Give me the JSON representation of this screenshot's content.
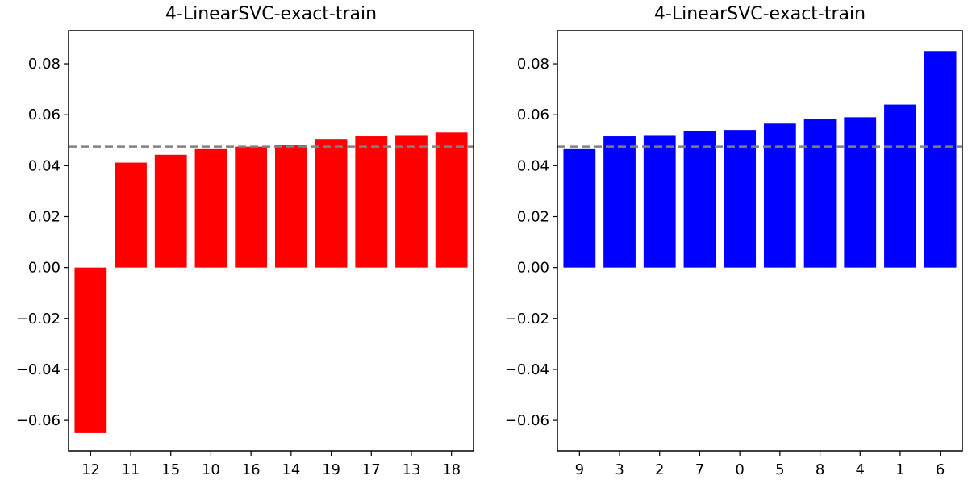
{
  "chart_data": [
    {
      "type": "bar",
      "title": "4-LinearSVC-exact-train",
      "xlabel": "",
      "ylabel": "",
      "categories": [
        "12",
        "11",
        "15",
        "10",
        "16",
        "14",
        "19",
        "17",
        "13",
        "18"
      ],
      "values": [
        -0.065,
        0.0412,
        0.0443,
        0.0465,
        0.0475,
        0.048,
        0.0505,
        0.0515,
        0.052,
        0.053
      ],
      "ylim": [
        -0.072,
        0.093
      ],
      "yticks": [
        -0.06,
        -0.04,
        -0.02,
        0.0,
        0.02,
        0.04,
        0.06,
        0.08
      ],
      "ytick_labels": [
        "−0.06",
        "−0.04",
        "−0.02",
        "0.00",
        "0.02",
        "0.04",
        "0.06",
        "0.08"
      ],
      "reference_line": 0.0475,
      "bar_color": "#ff0000",
      "reference_color": "#808080",
      "grid": false,
      "legend": "none"
    },
    {
      "type": "bar",
      "title": "4-LinearSVC-exact-train",
      "xlabel": "",
      "ylabel": "",
      "categories": [
        "9",
        "3",
        "2",
        "7",
        "0",
        "5",
        "8",
        "4",
        "1",
        "6"
      ],
      "values": [
        0.0465,
        0.0515,
        0.052,
        0.0535,
        0.054,
        0.0565,
        0.0583,
        0.059,
        0.064,
        0.085
      ],
      "ylim": [
        -0.072,
        0.093
      ],
      "yticks": [
        -0.06,
        -0.04,
        -0.02,
        0.0,
        0.02,
        0.04,
        0.06,
        0.08
      ],
      "ytick_labels": [
        "−0.06",
        "−0.04",
        "−0.02",
        "0.00",
        "0.02",
        "0.04",
        "0.06",
        "0.08"
      ],
      "reference_line": 0.0475,
      "bar_color": "#0000ff",
      "reference_color": "#808080",
      "grid": false,
      "legend": "none"
    }
  ]
}
